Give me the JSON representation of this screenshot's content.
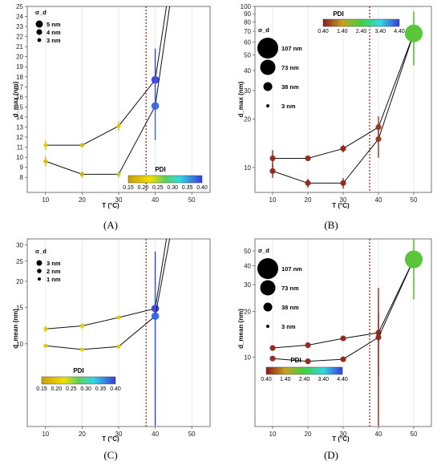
{
  "chart_data": [
    {
      "panel_label": "(A)",
      "type": "line",
      "xlabel": "T (°C)",
      "ylabel": "d_max (nm)",
      "scale": "linear",
      "xlim": [
        5,
        55
      ],
      "ylim": [
        6.5,
        25
      ],
      "xticks": [
        "10",
        "20",
        "30",
        "40",
        "50"
      ],
      "yticks": [
        "8",
        "9",
        "10",
        "11",
        "12",
        "13",
        "14",
        "15",
        "16",
        "17",
        "18",
        "19",
        "20",
        "21",
        "22",
        "23",
        "24",
        "25"
      ],
      "vline_x": 37.5,
      "series": [
        {
          "x": [
            10,
            20,
            30,
            40
          ],
          "y": [
            11.2,
            11.2,
            13.1,
            17.7
          ],
          "errors": [
            0.5,
            0.2,
            0.5,
            3.1
          ],
          "pdi": [
            0.2,
            0.18,
            0.2,
            0.4
          ],
          "extends_to_top": true
        },
        {
          "x": [
            10,
            20,
            30,
            40
          ],
          "y": [
            9.6,
            8.3,
            8.3,
            15.1
          ],
          "errors": [
            0.5,
            0.3,
            0.3,
            3.4
          ],
          "pdi": [
            0.18,
            0.17,
            0.25,
            0.38
          ],
          "extends_to_top": true
        }
      ],
      "size_legend": {
        "title": "σ_d",
        "entries": [
          "5 nm",
          "4 nm",
          "3 nm"
        ]
      },
      "pdi_colorbar": {
        "title": "PDI",
        "ticks": [
          "0.15",
          "0.20",
          "0.25",
          "0.30",
          "0.35",
          "0.40"
        ],
        "min": 0.15,
        "max": 0.4
      }
    },
    {
      "panel_label": "(B)",
      "type": "line",
      "xlabel": "T (°C)",
      "ylabel": "d_max (nm)",
      "scale": "log",
      "xlim": [
        5,
        55
      ],
      "ylim": [
        7,
        100
      ],
      "xticks": [
        "10",
        "20",
        "30",
        "40",
        "50"
      ],
      "yticks": [
        "10",
        "20",
        "30",
        "40",
        "50",
        "60",
        "70",
        "80",
        "90",
        "100"
      ],
      "vline_x": 37.5,
      "series": [
        {
          "x": [
            10,
            20,
            30,
            40,
            50
          ],
          "y": [
            11.4,
            11.4,
            13.1,
            17.8,
            68
          ],
          "errors": [
            1.4,
            0.4,
            0.7,
            3.0,
            25
          ],
          "pdi": [
            0.5,
            0.5,
            0.5,
            0.6,
            2.2
          ]
        },
        {
          "x": [
            10,
            20,
            30,
            40,
            50
          ],
          "y": [
            9.5,
            8.0,
            8.0,
            15.0,
            68
          ],
          "errors": [
            0.9,
            0.5,
            0.6,
            3.5,
            25
          ],
          "pdi": [
            0.5,
            0.5,
            0.5,
            0.6,
            2.2
          ]
        }
      ],
      "size_legend": {
        "title": "σ_d",
        "entries": [
          "107 nm",
          "73 nm",
          "38 nm",
          "3 nm"
        ]
      },
      "pdi_colorbar": {
        "title": "PDI",
        "ticks": [
          "0.40",
          "1.40",
          "2.40",
          "3.40",
          "4.40"
        ],
        "min": 0.4,
        "max": 4.4
      }
    },
    {
      "panel_label": "(C)",
      "type": "line",
      "xlabel": "T (°C)",
      "ylabel": "d_mean (nm)",
      "scale": "log",
      "xlim": [
        5,
        55
      ],
      "ylim": [
        4,
        32
      ],
      "xticks": [
        "10",
        "20",
        "30",
        "40",
        "50"
      ],
      "yticks": [
        "10",
        "15",
        "20",
        "25",
        "30"
      ],
      "vline_x": 37.5,
      "series": [
        {
          "x": [
            10,
            20,
            30,
            40
          ],
          "y": [
            11.8,
            12.2,
            13.4,
            14.8
          ],
          "errors": [
            0.4,
            0.4,
            0.3,
            13
          ],
          "pdi": [
            0.2,
            0.2,
            0.2,
            0.4
          ],
          "extends_to_top": true
        },
        {
          "x": [
            10,
            20,
            30,
            40
          ],
          "y": [
            9.8,
            9.4,
            9.7,
            13.6
          ],
          "errors": [
            0.2,
            0.2,
            0.2,
            6
          ],
          "pdi": [
            0.2,
            0.2,
            0.2,
            0.38
          ],
          "extends_to_top": true
        }
      ],
      "size_legend": {
        "title": "σ_d",
        "entries": [
          "3 nm",
          "2 nm",
          "1 nm"
        ]
      },
      "pdi_colorbar": {
        "title": "PDI",
        "ticks": [
          "0.15",
          "0.20",
          "0.25",
          "0.30",
          "0.35",
          "0.40"
        ],
        "min": 0.15,
        "max": 0.4
      }
    },
    {
      "panel_label": "(D)",
      "type": "line",
      "xlabel": "T (°C)",
      "ylabel": "d_mean (nm)",
      "scale": "log",
      "xlim": [
        5,
        55
      ],
      "ylim": [
        3.5,
        60
      ],
      "xticks": [
        "10",
        "20",
        "30",
        "40",
        "50"
      ],
      "yticks": [
        "10",
        "20",
        "30",
        "40",
        "50"
      ],
      "vline_x": 37.5,
      "series": [
        {
          "x": [
            10,
            20,
            30,
            40,
            50
          ],
          "y": [
            11.5,
            12.0,
            13.3,
            14.5,
            44
          ],
          "errors": [
            0.4,
            0.4,
            0.4,
            14,
            20
          ],
          "pdi": [
            0.5,
            0.5,
            0.5,
            0.5,
            2.2
          ]
        },
        {
          "x": [
            10,
            20,
            30,
            40,
            50
          ],
          "y": [
            9.8,
            9.4,
            9.7,
            13.5,
            44
          ],
          "errors": [
            0.2,
            0.2,
            0.3,
            6,
            20
          ],
          "pdi": [
            0.5,
            0.5,
            0.5,
            0.5,
            2.2
          ]
        }
      ],
      "size_legend": {
        "title": "σ_d",
        "entries": [
          "107 nm",
          "73 nm",
          "38 nm",
          "3 nm"
        ]
      },
      "pdi_colorbar": {
        "title": "PDI",
        "ticks": [
          "0.40",
          "1.40",
          "2.40",
          "3.40",
          "4.40"
        ],
        "min": 0.4,
        "max": 4.4
      }
    }
  ]
}
